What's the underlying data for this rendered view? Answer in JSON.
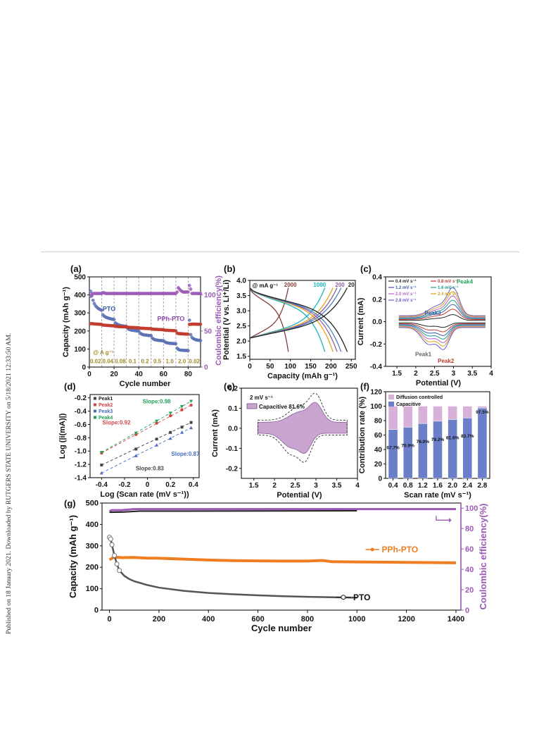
{
  "sidebar": {
    "text": "Published on 18 January 2021. Downloaded by RUTGERS STATE UNIVERSITY on 5/18/2021 12:33:50 AM."
  },
  "chart_data": [
    {
      "panel": "(a)",
      "type": "scatter",
      "xlabel": "Cycle number",
      "ylabel": "Capacity (mAh g⁻¹)",
      "y2label": "Coulombic efficiency(%)",
      "xlim": [
        0,
        90
      ],
      "ylim": [
        0,
        500
      ],
      "y2lim": [
        0,
        125
      ],
      "xticks": [
        0,
        20,
        40,
        60,
        80
      ],
      "yticks": [
        0,
        100,
        200,
        300,
        400,
        500
      ],
      "y2ticks": [
        0,
        50,
        100
      ],
      "annotations": [
        "PTO",
        "PPh-PTO",
        "@ A g⁻¹"
      ],
      "rate_labels": [
        "0.02",
        "0.04",
        "0.08",
        "0.1",
        "0.2",
        "0.5",
        "1.0",
        "2.0",
        "0.02"
      ],
      "rate_segments": [
        [
          0,
          10
        ],
        [
          10,
          20
        ],
        [
          20,
          30
        ],
        [
          30,
          40
        ],
        [
          40,
          50
        ],
        [
          50,
          60
        ],
        [
          60,
          70
        ],
        [
          70,
          80
        ],
        [
          80,
          90
        ]
      ],
      "series": [
        {
          "name": "PTO",
          "color": "#5a6fb5",
          "x": [
            1,
            2,
            3,
            4,
            5,
            6,
            7,
            8,
            9,
            10,
            11,
            12,
            13,
            14,
            15,
            16,
            17,
            18,
            19,
            20,
            21,
            22,
            23,
            24,
            25,
            26,
            27,
            28,
            29,
            30,
            31,
            32,
            33,
            34,
            35,
            36,
            37,
            38,
            39,
            40,
            41,
            42,
            43,
            44,
            45,
            46,
            47,
            48,
            49,
            50,
            51,
            52,
            53,
            54,
            55,
            56,
            57,
            58,
            59,
            60,
            61,
            62,
            63,
            64,
            65,
            66,
            67,
            68,
            69,
            70,
            71,
            72,
            73,
            74,
            75,
            76,
            77,
            78,
            79,
            80,
            81,
            82,
            83,
            84,
            85,
            86,
            87,
            88,
            89,
            90
          ],
          "y": [
            420,
            395,
            370,
            352,
            340,
            332,
            326,
            322,
            318,
            315,
            290,
            282,
            278,
            275,
            272,
            270,
            268,
            266,
            265,
            264,
            245,
            240,
            236,
            233,
            231,
            229,
            228,
            227,
            226,
            225,
            215,
            210,
            207,
            205,
            204,
            203,
            202,
            201,
            200,
            200,
            188,
            184,
            181,
            179,
            178,
            177,
            176,
            175,
            175,
            174,
            160,
            155,
            152,
            150,
            149,
            148,
            147,
            147,
            146,
            146,
            140,
            136,
            134,
            133,
            132,
            131,
            131,
            130,
            130,
            129,
            105,
            98,
            95,
            94,
            93,
            93,
            92,
            92,
            92,
            91,
            260,
            180,
            165,
            158,
            155,
            152,
            150,
            149,
            148,
            147
          ]
        },
        {
          "name": "PPh-PTO",
          "color": "#c0392b",
          "x": [
            1,
            2,
            3,
            4,
            5,
            6,
            7,
            8,
            9,
            10,
            11,
            12,
            13,
            14,
            15,
            16,
            17,
            18,
            19,
            20,
            21,
            22,
            23,
            24,
            25,
            26,
            27,
            28,
            29,
            30,
            31,
            32,
            33,
            34,
            35,
            36,
            37,
            38,
            39,
            40,
            41,
            42,
            43,
            44,
            45,
            46,
            47,
            48,
            49,
            50,
            51,
            52,
            53,
            54,
            55,
            56,
            57,
            58,
            59,
            60,
            61,
            62,
            63,
            64,
            65,
            66,
            67,
            68,
            69,
            70,
            71,
            72,
            73,
            74,
            75,
            76,
            77,
            78,
            79,
            80,
            81,
            82,
            83,
            84,
            85,
            86,
            87,
            88,
            89,
            90
          ],
          "y": [
            240,
            241,
            240,
            239,
            239,
            238,
            238,
            237,
            237,
            236,
            233,
            232,
            232,
            231,
            231,
            230,
            230,
            229,
            229,
            229,
            226,
            225,
            225,
            224,
            224,
            224,
            223,
            223,
            223,
            222,
            221,
            220,
            220,
            220,
            219,
            219,
            219,
            218,
            218,
            218,
            216,
            215,
            215,
            215,
            214,
            214,
            214,
            213,
            213,
            213,
            210,
            210,
            209,
            209,
            209,
            208,
            208,
            208,
            207,
            207,
            205,
            204,
            204,
            203,
            203,
            203,
            202,
            202,
            202,
            201,
            188,
            186,
            185,
            185,
            184,
            184,
            183,
            183,
            183,
            182,
            236,
            237,
            238,
            238,
            238,
            238,
            237,
            237,
            237,
            237
          ]
        },
        {
          "name": "CE",
          "color": "#9b59b6",
          "axis": "y2",
          "x": [
            1,
            2,
            3,
            4,
            5,
            6,
            7,
            8,
            9,
            10,
            11,
            12,
            13,
            14,
            15,
            16,
            17,
            18,
            19,
            20,
            21,
            22,
            23,
            24,
            25,
            26,
            27,
            28,
            29,
            30,
            31,
            32,
            33,
            34,
            35,
            36,
            37,
            38,
            39,
            40,
            41,
            42,
            43,
            44,
            45,
            46,
            47,
            48,
            49,
            50,
            51,
            52,
            53,
            54,
            55,
            56,
            57,
            58,
            59,
            60,
            61,
            62,
            63,
            64,
            65,
            66,
            67,
            68,
            69,
            70,
            71,
            72,
            73,
            74,
            75,
            76,
            77,
            78,
            79,
            80,
            81,
            82,
            83,
            84,
            85,
            86,
            87,
            88,
            89,
            90
          ],
          "y": [
            98,
            101,
            102,
            102,
            102,
            102,
            102,
            102,
            102,
            102,
            103,
            103,
            102,
            102,
            102,
            102,
            102,
            102,
            102,
            102,
            102,
            102,
            102,
            102,
            102,
            102,
            102,
            102,
            102,
            102,
            102,
            102,
            102,
            102,
            102,
            102,
            102,
            102,
            102,
            102,
            102,
            102,
            102,
            102,
            102,
            102,
            102,
            102,
            102,
            102,
            102,
            102,
            102,
            102,
            102,
            102,
            102,
            102,
            102,
            102,
            102,
            102,
            102,
            102,
            102,
            102,
            102,
            102,
            102,
            102,
            104,
            110,
            108,
            106,
            105,
            104,
            104,
            104,
            104,
            104,
            113,
            108,
            102,
            102,
            102,
            102,
            102,
            102,
            102,
            102
          ]
        }
      ]
    },
    {
      "panel": "(b)",
      "type": "line",
      "xlabel": "Capacity (mAh g⁻¹)",
      "ylabel": "Potential (V vs. Li⁺/Li)",
      "xlim": [
        0,
        260
      ],
      "ylim": [
        1.4,
        4.0
      ],
      "xticks": [
        0,
        50,
        100,
        150,
        200,
        250
      ],
      "yticks": [
        1.5,
        2.0,
        2.5,
        3.0,
        3.5,
        4.0
      ],
      "annotations": [
        "@ mA g⁻¹"
      ],
      "series": [
        {
          "name": "2000",
          "color": "#8b3a3a",
          "capacity": 95
        },
        {
          "name": "1000",
          "color": "#17b3c0",
          "capacity": 185
        },
        {
          "name": "",
          "color": "#e8a317",
          "capacity": 205
        },
        {
          "name": "200",
          "color": "#8e5ea2",
          "capacity": 215
        },
        {
          "name": "",
          "color": "#4a7fc1",
          "capacity": 225
        },
        {
          "name": "20",
          "color": "#222222",
          "capacity": 240
        }
      ]
    },
    {
      "panel": "(c)",
      "type": "line",
      "xlabel": "Potential (V)",
      "ylabel": "Current (mA)",
      "xlim": [
        1.2,
        4.0
      ],
      "ylim": [
        -0.4,
        0.4
      ],
      "xticks": [
        1.5,
        2.0,
        2.5,
        3.0,
        3.5,
        4.0
      ],
      "yticks": [
        -0.4,
        -0.2,
        0.0,
        0.2,
        0.4
      ],
      "annotations": [
        "Peak1",
        "Peak2",
        "Peak3",
        "Peak4"
      ],
      "series": [
        {
          "name": "0.4 mV s⁻¹",
          "color": "#222222",
          "scale": 0.18
        },
        {
          "name": "0.8 mV s⁻¹",
          "color": "#c0392b",
          "scale": 0.32
        },
        {
          "name": "1.2 mV s⁻¹",
          "color": "#3a5ea8",
          "scale": 0.44
        },
        {
          "name": "1.6 mV s⁻¹",
          "color": "#16a085",
          "scale": 0.55
        },
        {
          "name": "2.0 mV s⁻¹",
          "color": "#b565c9",
          "scale": 0.66
        },
        {
          "name": "2.4 mV s⁻¹",
          "color": "#d4a017",
          "scale": 0.77
        },
        {
          "name": "2.8 mV s⁻¹",
          "color": "#6a5acd",
          "scale": 0.88
        }
      ]
    },
    {
      "panel": "(d)",
      "type": "scatter",
      "xlabel": "Log (Scan rate (mV s⁻¹))",
      "ylabel": "Log (|i(mA)|)",
      "xlim": [
        -0.5,
        0.45
      ],
      "ylim": [
        -1.4,
        -0.15
      ],
      "xticks": [
        -0.4,
        -0.2,
        0.0,
        0.2,
        0.4
      ],
      "yticks": [
        -1.4,
        -1.2,
        -1.0,
        -0.8,
        -0.6,
        -0.4,
        -0.2
      ],
      "x": [
        -0.4,
        -0.1,
        0.08,
        0.2,
        0.3,
        0.38
      ],
      "series": [
        {
          "name": "Peak1",
          "color": "#444444",
          "marker": "square",
          "slope": "Slope:0.83",
          "y": [
            -1.21,
            -0.97,
            -0.82,
            -0.72,
            -0.64,
            -0.57
          ]
        },
        {
          "name": "Peak2",
          "color": "#d64545",
          "marker": "circle",
          "slope": "Slope:0.92",
          "y": [
            -1.03,
            -0.75,
            -0.58,
            -0.47,
            -0.38,
            -0.31
          ]
        },
        {
          "name": "Peak3",
          "color": "#4a6fc1",
          "marker": "triangle-up",
          "slope": "Slope:0.87",
          "y": [
            -1.33,
            -1.07,
            -0.91,
            -0.81,
            -0.72,
            -0.65
          ]
        },
        {
          "name": "Peak4",
          "color": "#1fa055",
          "marker": "triangle-down",
          "slope": "Slope:0.98",
          "y": [
            -1.02,
            -0.73,
            -0.55,
            -0.43,
            -0.33,
            -0.25
          ]
        }
      ]
    },
    {
      "panel": "(e)",
      "type": "area",
      "xlabel": "Potential (V)",
      "ylabel": "Current (mA)",
      "xlim": [
        1.2,
        4.0
      ],
      "ylim": [
        -0.25,
        0.2
      ],
      "xticks": [
        1.5,
        2.0,
        2.5,
        3.0,
        3.5,
        4.0
      ],
      "yticks": [
        -0.2,
        -0.1,
        0.0,
        0.1,
        0.2
      ],
      "annotations": [
        "2 mV s⁻¹"
      ],
      "series": [
        {
          "name": "Capacitive 81.6%",
          "color": "#c9a4cf"
        }
      ]
    },
    {
      "panel": "(f)",
      "type": "bar",
      "xlabel": "Scan rate (mV s⁻¹)",
      "ylabel": "Contribution rate (%)",
      "ylim": [
        0,
        120
      ],
      "yticks": [
        0,
        20,
        40,
        60,
        80,
        100,
        120
      ],
      "categories": [
        "0.4",
        "0.8",
        "1.2",
        "1.6",
        "2.0",
        "2.4",
        "2.8"
      ],
      "series": [
        {
          "name": "Capacitive",
          "color": "#6b7fc9",
          "values": [
            67.7,
            70.9,
            76.0,
            79.2,
            81.6,
            83.7,
            97.5
          ]
        },
        {
          "name": "Diffusion controlled",
          "color": "#d7b1d9",
          "values": [
            32.3,
            29.1,
            24.0,
            20.8,
            18.4,
            16.3,
            2.5
          ]
        }
      ],
      "data_labels": [
        "67.7%",
        "70.9%",
        "76.0%",
        "79.2%",
        "81.6%",
        "83.7%",
        "97.5%"
      ]
    },
    {
      "panel": "(g)",
      "type": "scatter",
      "xlabel": "Cycle number",
      "ylabel": "Capacity (mAh g⁻¹)",
      "y2label": "Coulombic efficiency(%)",
      "xlim": [
        -30,
        1420
      ],
      "ylim": [
        0,
        500
      ],
      "y2lim": [
        0,
        105
      ],
      "xticks": [
        0,
        200,
        400,
        600,
        800,
        1000,
        1200,
        1400
      ],
      "yticks": [
        0,
        100,
        200,
        300,
        400,
        500
      ],
      "y2ticks": [
        0,
        20,
        40,
        60,
        80,
        100
      ],
      "series": [
        {
          "name": "PPh-PTO",
          "color": "#ef7d22",
          "x": [
            0,
            20,
            50,
            100,
            150,
            200,
            300,
            400,
            500,
            600,
            700,
            800,
            860,
            900,
            1000,
            1100,
            1200,
            1300,
            1400
          ],
          "y": [
            235,
            248,
            245,
            246,
            243,
            242,
            238,
            234,
            231,
            230,
            229,
            229,
            232,
            226,
            225,
            224,
            223,
            222,
            221
          ]
        },
        {
          "name": "PTO",
          "color": "#555555",
          "x": [
            0,
            5,
            10,
            20,
            30,
            40,
            60,
            80,
            100,
            150,
            200,
            300,
            400,
            500,
            600,
            700,
            800,
            900,
            1000
          ],
          "y": [
            340,
            332,
            305,
            255,
            215,
            185,
            160,
            145,
            135,
            118,
            105,
            90,
            80,
            74,
            69,
            65,
            62,
            60,
            58
          ]
        },
        {
          "name": "CE",
          "color": "#9b59b6",
          "axis": "y2",
          "x": [
            0,
            10,
            50,
            100,
            200,
            300,
            400,
            500,
            600,
            700,
            800,
            900,
            1000,
            1100,
            1200,
            1300,
            1400
          ],
          "y": [
            97,
            98,
            98,
            99,
            99,
            99,
            99,
            99,
            99,
            99,
            99,
            99,
            99,
            99,
            99,
            99,
            99
          ]
        }
      ]
    }
  ]
}
